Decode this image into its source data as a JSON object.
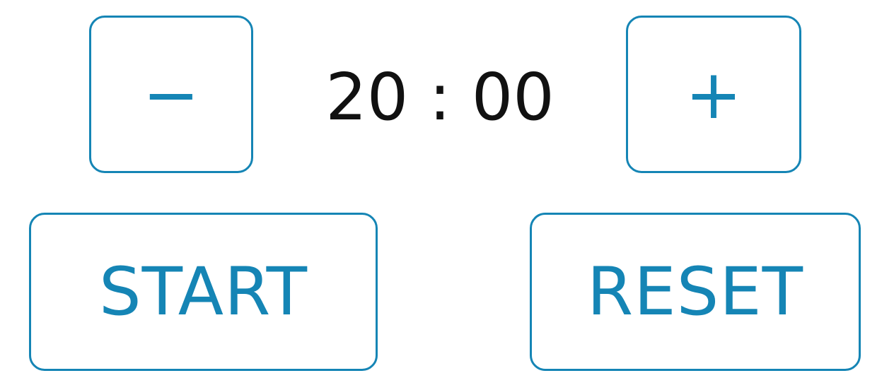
{
  "timer": {
    "display": "20 : 00",
    "decrement_label": "−",
    "increment_label": "+",
    "start_label": "START",
    "reset_label": "RESET"
  },
  "colors": {
    "accent": "#1585b5",
    "text": "#111111",
    "background": "#ffffff"
  }
}
